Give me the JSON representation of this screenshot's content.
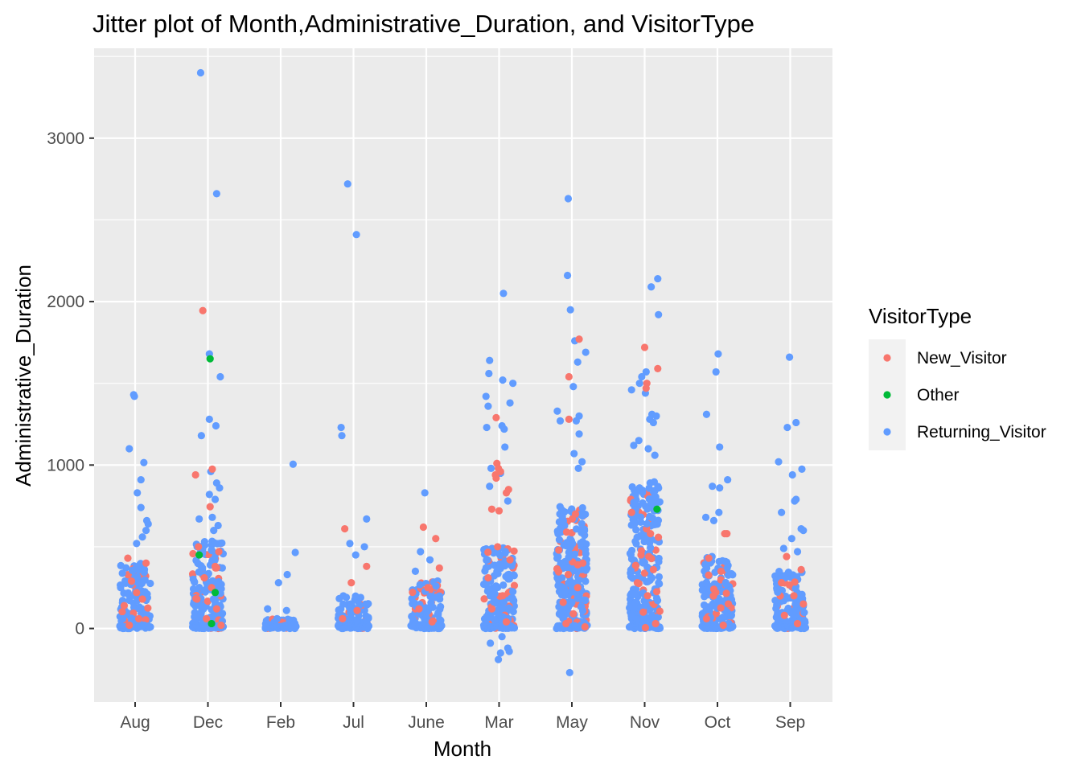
{
  "chart_data": {
    "type": "scatter",
    "title": "Jitter plot of Month,Administrative_Duration, and VisitorType",
    "xlabel": "Month",
    "ylabel": "Administrative_Duration",
    "categories": [
      "Aug",
      "Dec",
      "Feb",
      "Jul",
      "June",
      "Mar",
      "May",
      "Nov",
      "Oct",
      "Sep"
    ],
    "ylim": [
      -450,
      3550
    ],
    "yticks": [
      0,
      1000,
      2000,
      3000
    ],
    "grid": true,
    "legend": {
      "title": "VisitorType",
      "position": "right",
      "entries": [
        "New_Visitor",
        "Other",
        "Returning_Visitor"
      ]
    },
    "colors": {
      "New_Visitor": "#F8766D",
      "Other": "#00BA38",
      "Returning_Visitor": "#619CFF",
      "panel": "#EBEBEB",
      "grid": "#FFFFFF"
    },
    "dense_clusters": [
      {
        "category": "Aug",
        "series": "Returning_Visitor",
        "y_range": [
          0,
          400
        ]
      },
      {
        "category": "Dec",
        "series": "Returning_Visitor",
        "y_range": [
          0,
          550
        ]
      },
      {
        "category": "Feb",
        "series": "Returning_Visitor",
        "y_range": [
          0,
          60
        ]
      },
      {
        "category": "Jul",
        "series": "Returning_Visitor",
        "y_range": [
          0,
          200
        ]
      },
      {
        "category": "June",
        "series": "Returning_Visitor",
        "y_range": [
          0,
          300
        ]
      },
      {
        "category": "Mar",
        "series": "Returning_Visitor",
        "y_range": [
          0,
          500
        ]
      },
      {
        "category": "May",
        "series": "Returning_Visitor",
        "y_range": [
          0,
          750
        ]
      },
      {
        "category": "Nov",
        "series": "Returning_Visitor",
        "y_range": [
          0,
          900
        ]
      },
      {
        "category": "Oct",
        "series": "Returning_Visitor",
        "y_range": [
          0,
          450
        ]
      },
      {
        "category": "Sep",
        "series": "Returning_Visitor",
        "y_range": [
          0,
          350
        ]
      }
    ],
    "series": [
      {
        "name": "Returning_Visitor",
        "points": [
          [
            "Aug",
            -0.02,
            1430
          ],
          [
            "Aug",
            -0.01,
            1420
          ],
          [
            "Aug",
            0.12,
            1015
          ],
          [
            "Aug",
            -0.08,
            1100
          ],
          [
            "Aug",
            0.08,
            910
          ],
          [
            "Aug",
            0.03,
            830
          ],
          [
            "Aug",
            0.08,
            740
          ],
          [
            "Aug",
            0.18,
            640
          ],
          [
            "Aug",
            0.15,
            600
          ],
          [
            "Aug",
            0.16,
            660
          ],
          [
            "Aug",
            0.02,
            520
          ],
          [
            "Aug",
            0.1,
            560
          ],
          [
            "Dec",
            -0.1,
            3400
          ],
          [
            "Dec",
            0.12,
            2660
          ],
          [
            "Dec",
            0.02,
            1680
          ],
          [
            "Dec",
            0.17,
            1540
          ],
          [
            "Dec",
            0.02,
            1280
          ],
          [
            "Dec",
            0.11,
            1240
          ],
          [
            "Dec",
            -0.09,
            1180
          ],
          [
            "Dec",
            0.12,
            890
          ],
          [
            "Dec",
            0.16,
            860
          ],
          [
            "Dec",
            0.04,
            960
          ],
          [
            "Dec",
            0.02,
            820
          ],
          [
            "Dec",
            0.1,
            790
          ],
          [
            "Dec",
            0.06,
            680
          ],
          [
            "Dec",
            0.14,
            630
          ],
          [
            "Dec",
            -0.12,
            670
          ],
          [
            "Dec",
            0.08,
            600
          ],
          [
            "Feb",
            0.17,
            1005
          ],
          [
            "Feb",
            0.2,
            465
          ],
          [
            "Feb",
            0.09,
            330
          ],
          [
            "Feb",
            -0.03,
            280
          ],
          [
            "Feb",
            -0.18,
            120
          ],
          [
            "Feb",
            0.08,
            110
          ],
          [
            "Feb",
            -0.05,
            60
          ],
          [
            "Jul",
            -0.08,
            2720
          ],
          [
            "Jul",
            0.04,
            2410
          ],
          [
            "Jul",
            -0.17,
            1230
          ],
          [
            "Jul",
            -0.16,
            1180
          ],
          [
            "Jul",
            0.18,
            670
          ],
          [
            "Jul",
            -0.05,
            520
          ],
          [
            "Jul",
            0.15,
            500
          ],
          [
            "Jul",
            0.03,
            450
          ],
          [
            "June",
            -0.02,
            830
          ],
          [
            "June",
            -0.08,
            470
          ],
          [
            "June",
            0.05,
            420
          ],
          [
            "June",
            -0.15,
            350
          ],
          [
            "Mar",
            0.06,
            2050
          ],
          [
            "Mar",
            -0.13,
            1640
          ],
          [
            "Mar",
            -0.14,
            1560
          ],
          [
            "Mar",
            0.05,
            1520
          ],
          [
            "Mar",
            0.19,
            1500
          ],
          [
            "Mar",
            -0.18,
            1420
          ],
          [
            "Mar",
            0.15,
            1380
          ],
          [
            "Mar",
            -0.15,
            1360
          ],
          [
            "Mar",
            0.04,
            1240
          ],
          [
            "Mar",
            0.07,
            1220
          ],
          [
            "Mar",
            -0.17,
            1230
          ],
          [
            "Mar",
            0.08,
            1110
          ],
          [
            "Mar",
            -0.11,
            980
          ],
          [
            "Mar",
            0.02,
            950
          ],
          [
            "Mar",
            -0.13,
            870
          ],
          [
            "Mar",
            0.12,
            780
          ],
          [
            "Mar",
            -0.12,
            -90
          ],
          [
            "Mar",
            0.12,
            -120
          ],
          [
            "Mar",
            0.02,
            -150
          ],
          [
            "Mar",
            -0.01,
            -190
          ],
          [
            "Mar",
            0.14,
            -140
          ],
          [
            "Mar",
            0.04,
            -50
          ],
          [
            "May",
            -0.05,
            2630
          ],
          [
            "May",
            -0.06,
            2160
          ],
          [
            "May",
            -0.02,
            1950
          ],
          [
            "May",
            0.04,
            1760
          ],
          [
            "May",
            0.19,
            1690
          ],
          [
            "May",
            0.08,
            1630
          ],
          [
            "May",
            0.02,
            1480
          ],
          [
            "May",
            -0.2,
            1330
          ],
          [
            "May",
            0.1,
            1300
          ],
          [
            "May",
            -0.16,
            1270
          ],
          [
            "May",
            0.06,
            1270
          ],
          [
            "May",
            0.1,
            1190
          ],
          [
            "May",
            0.03,
            1070
          ],
          [
            "May",
            0.14,
            1020
          ],
          [
            "May",
            0.09,
            980
          ],
          [
            "May",
            -0.03,
            -270
          ],
          [
            "Nov",
            0.18,
            2140
          ],
          [
            "Nov",
            0.09,
            2090
          ],
          [
            "Nov",
            0.19,
            1920
          ],
          [
            "Nov",
            -0.18,
            1460
          ],
          [
            "Nov",
            -0.07,
            1500
          ],
          [
            "Nov",
            -0.04,
            1540
          ],
          [
            "Nov",
            0.02,
            1570
          ],
          [
            "Nov",
            0.01,
            1440
          ],
          [
            "Nov",
            0.1,
            1310
          ],
          [
            "Nov",
            0.16,
            1300
          ],
          [
            "Nov",
            0.07,
            1280
          ],
          [
            "Nov",
            0.12,
            1260
          ],
          [
            "Nov",
            -0.15,
            1120
          ],
          [
            "Nov",
            -0.08,
            1150
          ],
          [
            "Nov",
            0.05,
            1100
          ],
          [
            "Nov",
            0.14,
            1060
          ],
          [
            "Oct",
            0.01,
            1680
          ],
          [
            "Oct",
            -0.02,
            1570
          ],
          [
            "Oct",
            -0.15,
            1310
          ],
          [
            "Oct",
            0.03,
            1110
          ],
          [
            "Oct",
            0.14,
            910
          ],
          [
            "Oct",
            -0.07,
            870
          ],
          [
            "Oct",
            0.03,
            860
          ],
          [
            "Oct",
            0.02,
            710
          ],
          [
            "Oct",
            -0.16,
            680
          ],
          [
            "Oct",
            -0.05,
            660
          ],
          [
            "Sep",
            -0.01,
            1660
          ],
          [
            "Sep",
            0.08,
            1260
          ],
          [
            "Sep",
            -0.04,
            1230
          ],
          [
            "Sep",
            -0.16,
            1020
          ],
          [
            "Sep",
            0.16,
            975
          ],
          [
            "Sep",
            0.03,
            940
          ],
          [
            "Sep",
            0.08,
            790
          ],
          [
            "Sep",
            0.06,
            780
          ],
          [
            "Sep",
            -0.12,
            710
          ],
          [
            "Sep",
            0.15,
            610
          ],
          [
            "Sep",
            0.18,
            600
          ],
          [
            "Sep",
            0.02,
            550
          ],
          [
            "Sep",
            -0.09,
            490
          ],
          [
            "Sep",
            0.1,
            470
          ]
        ]
      },
      {
        "name": "New_Visitor",
        "points": [
          [
            "Aug",
            -0.1,
            430
          ],
          [
            "Aug",
            0.15,
            400
          ],
          [
            "Aug",
            -0.05,
            290
          ],
          [
            "Aug",
            0.02,
            220
          ],
          [
            "Aug",
            0.1,
            180
          ],
          [
            "Aug",
            -0.15,
            140
          ],
          [
            "Aug",
            0.05,
            60
          ],
          [
            "Aug",
            -0.08,
            20
          ],
          [
            "Dec",
            -0.07,
            1945
          ],
          [
            "Dec",
            0.06,
            975
          ],
          [
            "Dec",
            -0.17,
            940
          ],
          [
            "Dec",
            0.03,
            745
          ],
          [
            "Dec",
            -0.13,
            500
          ],
          [
            "Dec",
            0.15,
            470
          ],
          [
            "Dec",
            0.1,
            380
          ],
          [
            "Dec",
            -0.05,
            310
          ],
          [
            "Dec",
            0.05,
            250
          ],
          [
            "Dec",
            -0.15,
            180
          ],
          [
            "Dec",
            0.12,
            120
          ],
          [
            "Dec",
            -0.02,
            60
          ],
          [
            "Dec",
            0.18,
            20
          ],
          [
            "Jul",
            -0.12,
            610
          ],
          [
            "Jul",
            0.18,
            380
          ],
          [
            "Jul",
            -0.03,
            280
          ],
          [
            "Jul",
            0.05,
            110
          ],
          [
            "Jul",
            -0.15,
            60
          ],
          [
            "June",
            -0.04,
            620
          ],
          [
            "June",
            0.13,
            550
          ],
          [
            "June",
            0.18,
            370
          ],
          [
            "June",
            0.02,
            250
          ],
          [
            "June",
            -0.1,
            120
          ],
          [
            "June",
            0.08,
            40
          ],
          [
            "Mar",
            -0.04,
            1290
          ],
          [
            "Mar",
            -0.03,
            1010
          ],
          [
            "Mar",
            -0.01,
            980
          ],
          [
            "Mar",
            0.02,
            960
          ],
          [
            "Mar",
            -0.05,
            940
          ],
          [
            "Mar",
            -0.04,
            920
          ],
          [
            "Mar",
            0.13,
            850
          ],
          [
            "Mar",
            0.1,
            830
          ],
          [
            "Mar",
            -0.1,
            730
          ],
          [
            "Mar",
            0.0,
            720
          ],
          [
            "Mar",
            -0.02,
            500
          ],
          [
            "Mar",
            0.15,
            420
          ],
          [
            "Mar",
            -0.15,
            310
          ],
          [
            "Mar",
            0.05,
            200
          ],
          [
            "Mar",
            -0.1,
            120
          ],
          [
            "Mar",
            0.1,
            40
          ],
          [
            "May",
            0.1,
            1770
          ],
          [
            "May",
            -0.04,
            1540
          ],
          [
            "May",
            -0.04,
            1280
          ],
          [
            "May",
            0.05,
            700
          ],
          [
            "May",
            -0.18,
            480
          ],
          [
            "May",
            0.15,
            400
          ],
          [
            "May",
            -0.05,
            330
          ],
          [
            "May",
            0.08,
            250
          ],
          [
            "May",
            -0.12,
            160
          ],
          [
            "May",
            0.02,
            90
          ],
          [
            "May",
            -0.08,
            30
          ],
          [
            "May",
            0.18,
            10
          ],
          [
            "Nov",
            0.0,
            1720
          ],
          [
            "Nov",
            0.03,
            1500
          ],
          [
            "Nov",
            0.02,
            1470
          ],
          [
            "Nov",
            0.18,
            1590
          ],
          [
            "Nov",
            -0.18,
            710
          ],
          [
            "Nov",
            0.08,
            580
          ],
          [
            "Nov",
            -0.05,
            450
          ],
          [
            "Nov",
            0.12,
            360
          ],
          [
            "Nov",
            -0.1,
            280
          ],
          [
            "Nov",
            0.04,
            200
          ],
          [
            "Nov",
            -0.02,
            100
          ],
          [
            "Nov",
            0.15,
            30
          ],
          [
            "Nov",
            0.01,
            5
          ],
          [
            "Oct",
            0.1,
            580
          ],
          [
            "Oct",
            0.13,
            580
          ],
          [
            "Oct",
            -0.12,
            430
          ],
          [
            "Oct",
            0.05,
            350
          ],
          [
            "Oct",
            -0.05,
            240
          ],
          [
            "Oct",
            0.15,
            150
          ],
          [
            "Oct",
            -0.15,
            60
          ],
          [
            "Oct",
            0.08,
            20
          ],
          [
            "Sep",
            -0.05,
            440
          ],
          [
            "Sep",
            0.15,
            360
          ],
          [
            "Sep",
            -0.12,
            280
          ],
          [
            "Sep",
            0.05,
            200
          ],
          [
            "Sep",
            0.18,
            150
          ],
          [
            "Sep",
            -0.08,
            80
          ],
          [
            "Sep",
            0.1,
            30
          ]
        ]
      },
      {
        "name": "Other",
        "points": [
          [
            "Dec",
            0.03,
            1650
          ],
          [
            "Dec",
            -0.12,
            450
          ],
          [
            "Dec",
            0.1,
            220
          ],
          [
            "Dec",
            0.05,
            30
          ],
          [
            "Nov",
            0.17,
            730
          ]
        ]
      }
    ]
  }
}
